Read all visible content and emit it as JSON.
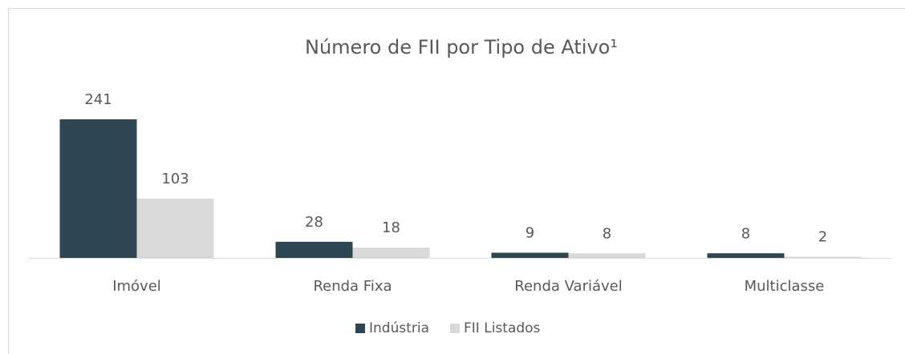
{
  "chart_data": {
    "type": "bar",
    "title": "Número de FII por Tipo de Ativo¹",
    "categories": [
      "Imóvel",
      "Renda Fixa",
      "Renda Variável",
      "Multiclasse"
    ],
    "series": [
      {
        "name": "Indústria",
        "color": "#2e4552",
        "values": [
          241,
          28,
          9,
          8
        ]
      },
      {
        "name": "FII Listados",
        "color": "#d9d9d9",
        "values": [
          103,
          18,
          8,
          2
        ]
      }
    ],
    "legend": "bottom"
  }
}
